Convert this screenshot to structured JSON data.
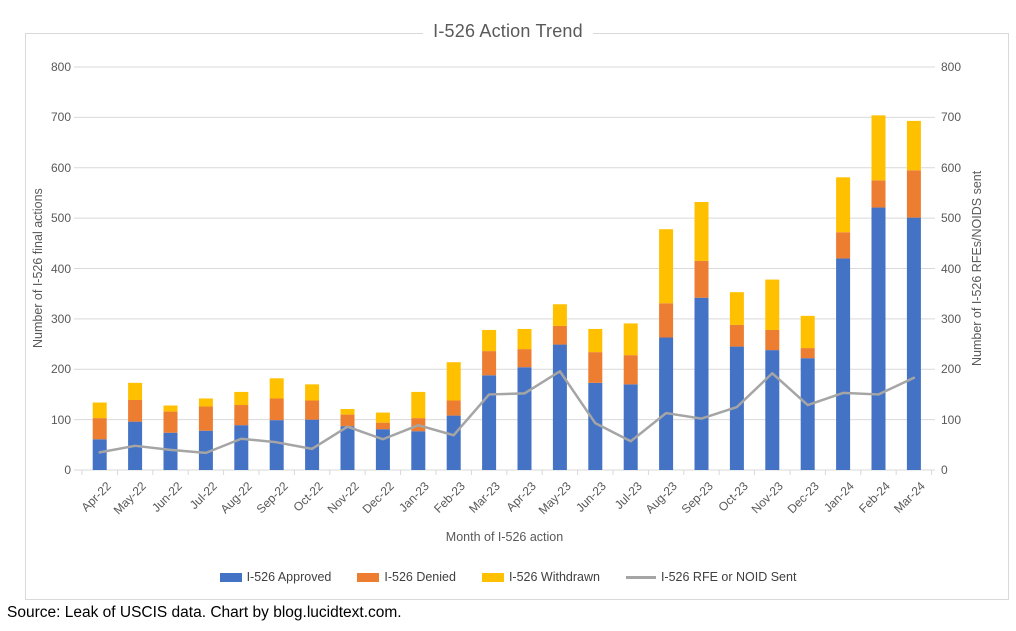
{
  "source_note": "Source: Leak of USCIS data. Chart by blog.lucidtext.com.",
  "colors": {
    "approved": "#4472C4",
    "denied": "#ED7D31",
    "withdrawn": "#FFC000",
    "rfe_line": "#A5A5A5",
    "gridline": "#D9D9D9",
    "axis_text": "#595959",
    "title_text": "#595959",
    "legend_text": "#404040",
    "source_text": "#000000"
  },
  "chart_data": {
    "type": "bar",
    "subtype": "stacked-bars-with-line-overlay",
    "title": "I-526 Action Trend",
    "xlabel": "Month of I-526 action",
    "ylabel_left": "Number of I-526 final actions",
    "ylabel_right": "Number of I-526 RFEs/NOIDS sent",
    "ylim": [
      0,
      800
    ],
    "yticks": [
      0,
      100,
      200,
      300,
      400,
      500,
      600,
      700,
      800
    ],
    "grid": true,
    "legend_position": "bottom",
    "categories": [
      "Apr-22",
      "May-22",
      "Jun-22",
      "Jul-22",
      "Aug-22",
      "Sep-22",
      "Oct-22",
      "Nov-22",
      "Dec-22",
      "Jan-23",
      "Feb-23",
      "Mar-23",
      "Apr-23",
      "May-23",
      "Jun-23",
      "Jul-23",
      "Aug-23",
      "Sep-23",
      "Oct-23",
      "Nov-23",
      "Dec-23",
      "Jan-24",
      "Feb-24",
      "Mar-24"
    ],
    "series": [
      {
        "name": "I-526 Approved",
        "type": "bar",
        "color": "#4472C4",
        "values": [
          61,
          96,
          74,
          78,
          89,
          99,
          100,
          87,
          81,
          77,
          108,
          188,
          204,
          249,
          173,
          170,
          263,
          342,
          245,
          238,
          222,
          420,
          521,
          501
        ]
      },
      {
        "name": "I-526 Denied",
        "type": "bar",
        "color": "#ED7D31",
        "values": [
          42,
          43,
          42,
          48,
          40,
          43,
          38,
          23,
          13,
          26,
          30,
          48,
          36,
          37,
          61,
          58,
          68,
          73,
          43,
          40,
          20,
          52,
          54,
          94
        ]
      },
      {
        "name": "I-526 Withdrawn",
        "type": "bar",
        "color": "#FFC000",
        "values": [
          31,
          34,
          12,
          16,
          26,
          40,
          32,
          11,
          20,
          52,
          76,
          42,
          40,
          43,
          46,
          63,
          147,
          117,
          65,
          100,
          64,
          109,
          129,
          98
        ]
      },
      {
        "name": "I-526 RFE or NOID Sent",
        "type": "line",
        "color": "#A5A5A5",
        "values": [
          35,
          48,
          40,
          34,
          62,
          55,
          42,
          86,
          61,
          89,
          69,
          150,
          152,
          196,
          93,
          57,
          113,
          102,
          125,
          192,
          129,
          153,
          150,
          183
        ]
      }
    ]
  }
}
